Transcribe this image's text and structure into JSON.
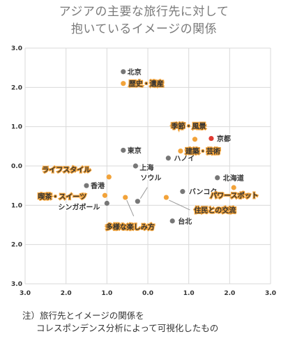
{
  "title_lines": [
    "アジアの主要な旅行先に対して",
    "抱いているイメージの関係"
  ],
  "note_lines": [
    "注）旅行先とイメージの関係を",
    "コレスポンデンス分析によって可視化したもの"
  ],
  "colors": {
    "destination": "#777777",
    "image": "#f2a33a",
    "highlight": "#e03a32",
    "grid": "#d9d9d9"
  },
  "chart_data": {
    "type": "scatter",
    "title": "アジアの主要な旅行先に対して抱いているイメージの関係",
    "xlim": [
      -3.0,
      3.0
    ],
    "ylim": [
      -3.0,
      3.0
    ],
    "x_reversed": true,
    "y_reversed": true,
    "xticks": [
      "3.0",
      "2.0",
      "1.0",
      "0.0",
      "1.0",
      "2.0",
      "3.0"
    ],
    "yticks": [
      "3.0",
      "2.0",
      "1.0",
      "0.0",
      "1.0",
      "2.0",
      "3.0"
    ],
    "grid": true,
    "series": [
      {
        "kind": "destination",
        "points": [
          {
            "label": "北京",
            "x": 0.6,
            "y": 2.4
          },
          {
            "label": "東京",
            "x": 0.6,
            "y": 0.4
          },
          {
            "label": "上海",
            "x": 0.3,
            "y": 0.0
          },
          {
            "label": "ハノイ",
            "x": -0.5,
            "y": 0.2
          },
          {
            "label": "北海道",
            "x": -1.7,
            "y": -0.3
          },
          {
            "label": "香港",
            "x": 1.5,
            "y": -0.5
          },
          {
            "label": "ソウル",
            "x": 0.25,
            "y": -0.9
          },
          {
            "label": "バンコク",
            "x": -0.85,
            "y": -0.65
          },
          {
            "label": "シンガポール",
            "x": 1.0,
            "y": -0.95
          },
          {
            "label": "台北",
            "x": -0.6,
            "y": -1.4
          }
        ]
      },
      {
        "kind": "highlight",
        "points": [
          {
            "label": "京都",
            "x": -1.55,
            "y": 0.7
          }
        ]
      },
      {
        "kind": "image",
        "points": [
          {
            "label": "歴史・遺産",
            "x": 0.6,
            "y": 2.1
          },
          {
            "label": "季節・風景",
            "x": -1.15,
            "y": 0.68
          },
          {
            "label": "建築・芸術",
            "x": -0.8,
            "y": 0.38
          },
          {
            "label": "ライフスタイル",
            "x": 0.95,
            "y": -0.28
          },
          {
            "label": "パワースポット",
            "x": -2.1,
            "y": -0.55
          },
          {
            "label": "喫茶・スイーツ",
            "x": 1.05,
            "y": -0.75
          },
          {
            "label": "多様な楽しみ方",
            "x": 0.55,
            "y": -0.8
          },
          {
            "label": "住民との交流",
            "x": -0.45,
            "y": -0.8
          }
        ]
      }
    ]
  }
}
